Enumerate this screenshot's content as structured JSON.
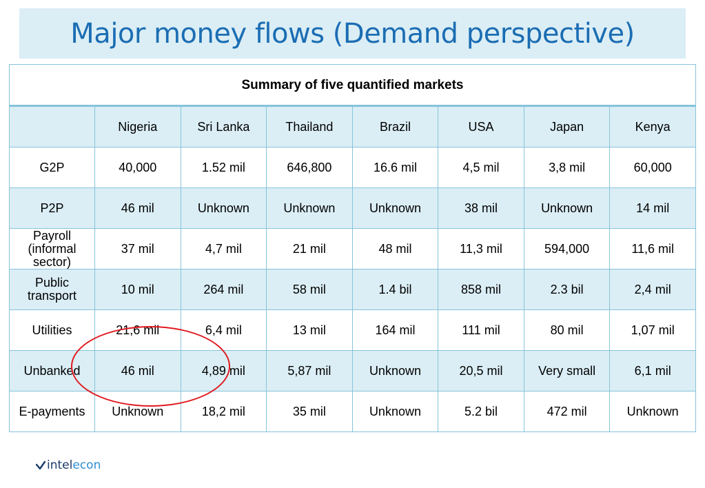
{
  "title": "Major money flows (Demand perspective)",
  "table": {
    "caption": "Summary of five quantified markets",
    "corner": "",
    "columns": [
      "Nigeria",
      "Sri Lanka",
      "Thailand",
      "Brazil",
      "USA",
      "Japan",
      "Kenya"
    ],
    "rows": [
      {
        "label": "G2P",
        "cells": [
          "40,000",
          "1.52 mil",
          "646,800",
          "16.6 mil",
          "4,5 mil",
          "3,8 mil",
          "60,000"
        ]
      },
      {
        "label": "P2P",
        "cells": [
          "46 mil",
          "Unknown",
          "Unknown",
          "Unknown",
          "38 mil",
          "Unknown",
          "14 mil"
        ]
      },
      {
        "label": "Payroll (informal sector)",
        "cells": [
          "37 mil",
          "4,7 mil",
          "21 mil",
          "48 mil",
          "11,3 mil",
          "594,000",
          "11,6 mil"
        ]
      },
      {
        "label": "Public transport",
        "cells": [
          "10 mil",
          "264 mil",
          "58 mil",
          "1.4 bil",
          "858 mil",
          "2.3 bil",
          "2,4 mil"
        ]
      },
      {
        "label": "Utilities",
        "cells": [
          "21,6 mil",
          "6,4 mil",
          "13 mil",
          "164 mil",
          "111 mil",
          "80 mil",
          "1,07 mil"
        ]
      },
      {
        "label": "Unbanked",
        "cells": [
          "46 mil",
          "4,89 mil",
          "5,87 mil",
          "Unknown",
          "20,5 mil",
          "Very small",
          "6,1 mil"
        ]
      },
      {
        "label": "E-payments",
        "cells": [
          "Unknown",
          "18,2 mil",
          "35 mil",
          "Unknown",
          "5.2 bil",
          "472 mil",
          "Unknown"
        ]
      }
    ]
  },
  "logo": {
    "part1": "intel",
    "part2": "econ"
  },
  "colors": {
    "title": "#1b6db3",
    "title_bg": "#dbeef5",
    "row_shade": "#dbeef5",
    "border": "#86c3da",
    "highlight": "#e0191f",
    "logo_dark": "#1a3a6b",
    "logo_light": "#2e8fd0"
  },
  "icons": {
    "logo_mark": "chevron-check-icon",
    "annotation": "red-ellipse-highlight"
  }
}
